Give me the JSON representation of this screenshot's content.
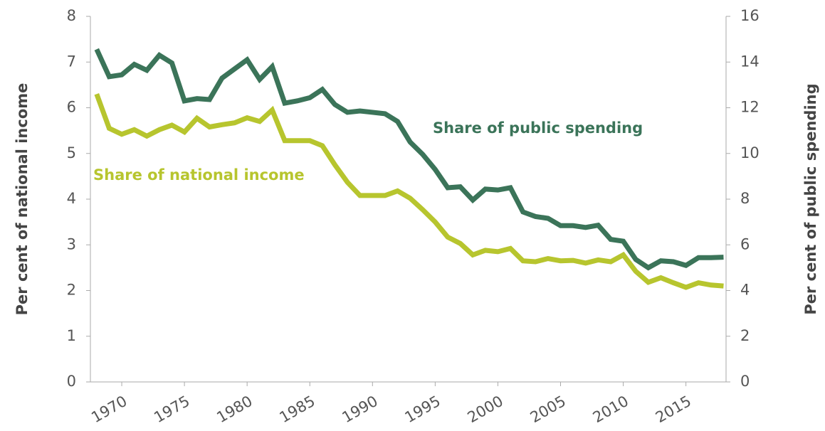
{
  "chart_data": {
    "type": "line",
    "y_label": "Per cent of national income",
    "y2_label": "Per cent of public spending",
    "x": [
      1968,
      1969,
      1970,
      1971,
      1972,
      1973,
      1974,
      1975,
      1976,
      1977,
      1978,
      1979,
      1980,
      1981,
      1982,
      1983,
      1984,
      1985,
      1986,
      1987,
      1988,
      1989,
      1990,
      1991,
      1992,
      1993,
      1994,
      1995,
      1996,
      1997,
      1998,
      1999,
      2000,
      2001,
      2002,
      2003,
      2004,
      2005,
      2006,
      2007,
      2008,
      2009,
      2010,
      2011,
      2012,
      2013,
      2014,
      2015,
      2016,
      2017,
      2018
    ],
    "xlim": [
      1967.5,
      2018.2
    ],
    "xticks": [
      1970,
      1975,
      1980,
      1985,
      1990,
      1995,
      2000,
      2005,
      2010,
      2015
    ],
    "ylim": [
      0,
      8
    ],
    "yticks": [
      0,
      1,
      2,
      3,
      4,
      5,
      6,
      7,
      8
    ],
    "y2lim": [
      0,
      16
    ],
    "y2ticks": [
      0,
      2,
      4,
      6,
      8,
      10,
      12,
      14,
      16
    ],
    "annotations": [
      "Share of public spending",
      "Share of national income"
    ],
    "series": [
      {
        "color": "#3b7459",
        "axis": "y2",
        "values": [
          14.56,
          13.36,
          13.44,
          13.9,
          13.64,
          14.3,
          13.96,
          12.3,
          12.4,
          12.36,
          13.3,
          13.7,
          14.1,
          13.24,
          13.8,
          12.2,
          12.3,
          12.44,
          12.8,
          12.14,
          11.8,
          11.86,
          11.8,
          11.74,
          11.4,
          10.5,
          9.96,
          9.3,
          8.5,
          8.54,
          7.96,
          8.44,
          8.4,
          8.5,
          7.44,
          7.24,
          7.16,
          6.84,
          6.84,
          6.76,
          6.86,
          6.24,
          6.16,
          5.36,
          5.0,
          5.3,
          5.26,
          5.1,
          5.44,
          5.44,
          5.46
        ]
      },
      {
        "color": "#b7c52e",
        "values": [
          6.3,
          5.55,
          5.42,
          5.52,
          5.38,
          5.52,
          5.62,
          5.47,
          5.77,
          5.58,
          5.63,
          5.67,
          5.78,
          5.7,
          5.95,
          5.28,
          5.28,
          5.28,
          5.17,
          4.75,
          4.37,
          4.08,
          4.08,
          4.08,
          4.18,
          4.02,
          3.77,
          3.5,
          3.17,
          3.03,
          2.78,
          2.88,
          2.85,
          2.92,
          2.65,
          2.63,
          2.7,
          2.65,
          2.66,
          2.6,
          2.67,
          2.63,
          2.78,
          2.42,
          2.18,
          2.28,
          2.17,
          2.07,
          2.17,
          2.12,
          2.1
        ]
      }
    ]
  }
}
